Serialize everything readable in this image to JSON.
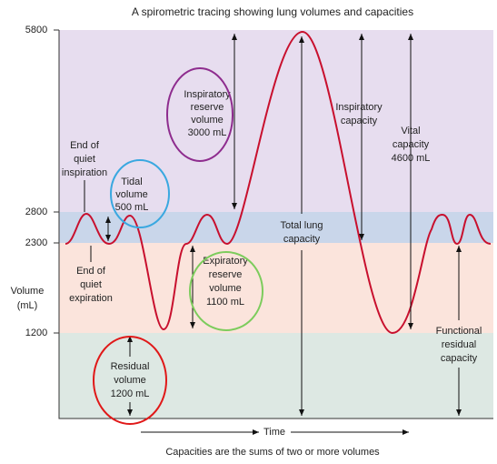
{
  "title": "A spirometric tracing showing lung volumes and capacities",
  "y_axis": {
    "label": [
      "Volume",
      "(mL)"
    ],
    "ticks": [
      "5800",
      "2800",
      "2300",
      "1200"
    ]
  },
  "annotations": {
    "end_inspiration": [
      "End of",
      "quiet",
      "inspiration"
    ],
    "tidal_volume": [
      "Tidal",
      "volume",
      "500 mL"
    ],
    "inspiratory_reserve_volume": [
      "Inspiratory",
      "reserve",
      "volume",
      "3000 mL"
    ],
    "inspiratory_capacity": [
      "Inspiratory",
      "capacity"
    ],
    "vital_capacity": [
      "Vital",
      "capacity",
      "4600 mL"
    ],
    "total_lung_capacity": [
      "Total lung",
      "capacity"
    ],
    "end_expiration": [
      "End of",
      "quiet",
      "expiration"
    ],
    "expiratory_reserve_volume": [
      "Expiratory",
      "reserve",
      "volume",
      "1100 mL"
    ],
    "functional_residual_capacity": [
      "Functional",
      "residual",
      "capacity"
    ],
    "residual_volume": [
      "Residual",
      "volume",
      "1200 mL"
    ]
  },
  "x_axis_label": "Time",
  "caption": "Capacities are the sums of two or more volumes"
}
